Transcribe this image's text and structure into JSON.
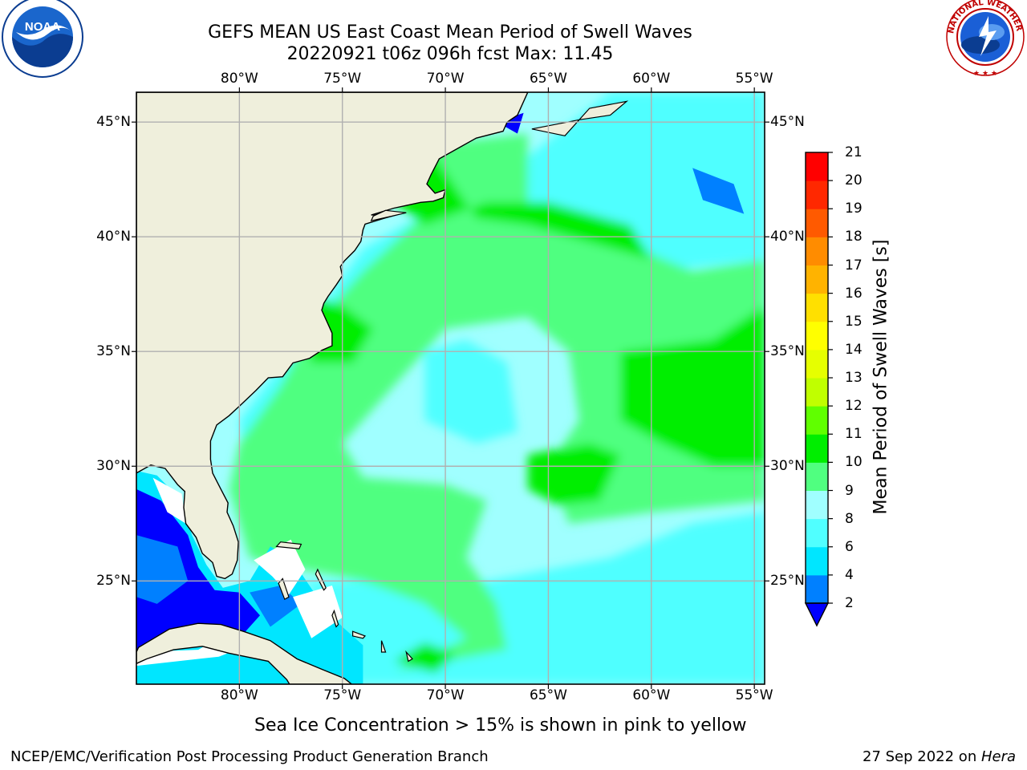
{
  "title": {
    "line1": "GEFS MEAN US East Coast Mean Period of Swell Waves",
    "line2": "20220921 t06z 096h fcst   Max: 11.45"
  },
  "map": {
    "lon_range": [
      -85,
      -54.5
    ],
    "lat_range": [
      20.5,
      46.3
    ],
    "lon_ticks": [
      {
        "value": -80,
        "label": "80°W"
      },
      {
        "value": -75,
        "label": "75°W"
      },
      {
        "value": -70,
        "label": "70°W"
      },
      {
        "value": -65,
        "label": "65°W"
      },
      {
        "value": -60,
        "label": "60°W"
      },
      {
        "value": -55,
        "label": "55°W"
      }
    ],
    "lat_ticks": [
      {
        "value": 45,
        "label": "45°N"
      },
      {
        "value": 40,
        "label": "40°N"
      },
      {
        "value": 35,
        "label": "35°N"
      },
      {
        "value": 30,
        "label": "30°N"
      },
      {
        "value": 25,
        "label": "25°N"
      }
    ],
    "colors": {
      "land": "#efefdc",
      "nodata": "#ffffff",
      "grid": "#b0b0b0"
    }
  },
  "colorbar": {
    "title": "Mean Period of Swell Waves [s]",
    "levels": [
      2,
      4,
      6,
      8,
      9,
      10,
      11,
      12,
      13,
      14,
      15,
      16,
      17,
      18,
      19,
      20,
      21
    ],
    "under_color": "#0000ff",
    "colors": [
      "#0080ff",
      "#00e6ff",
      "#50ffff",
      "#a0ffff",
      "#50ff80",
      "#00ee00",
      "#60ff00",
      "#c0ff00",
      "#e6ff00",
      "#ffff00",
      "#ffe000",
      "#ffb300",
      "#ff8c00",
      "#ff5a00",
      "#ff2800",
      "#ff0000"
    ]
  },
  "caption": "Sea Ice Concentration > 15% is shown in pink to yellow",
  "footer": {
    "left": "NCEP/EMC/Verification Post Processing Product Generation Branch",
    "right_date": "27 Sep 2022 on ",
    "right_machine": "Hera"
  },
  "logos": {
    "noaa": {
      "text": "NOAA",
      "ring_text": "NATIONAL OCEANIC AND ATMOSPHERIC ADMINISTRATION • U.S. DEPARTMENT OF COMMERCE"
    },
    "nws": {
      "ring_text": "NATIONAL WEATHER SERVICE"
    }
  }
}
